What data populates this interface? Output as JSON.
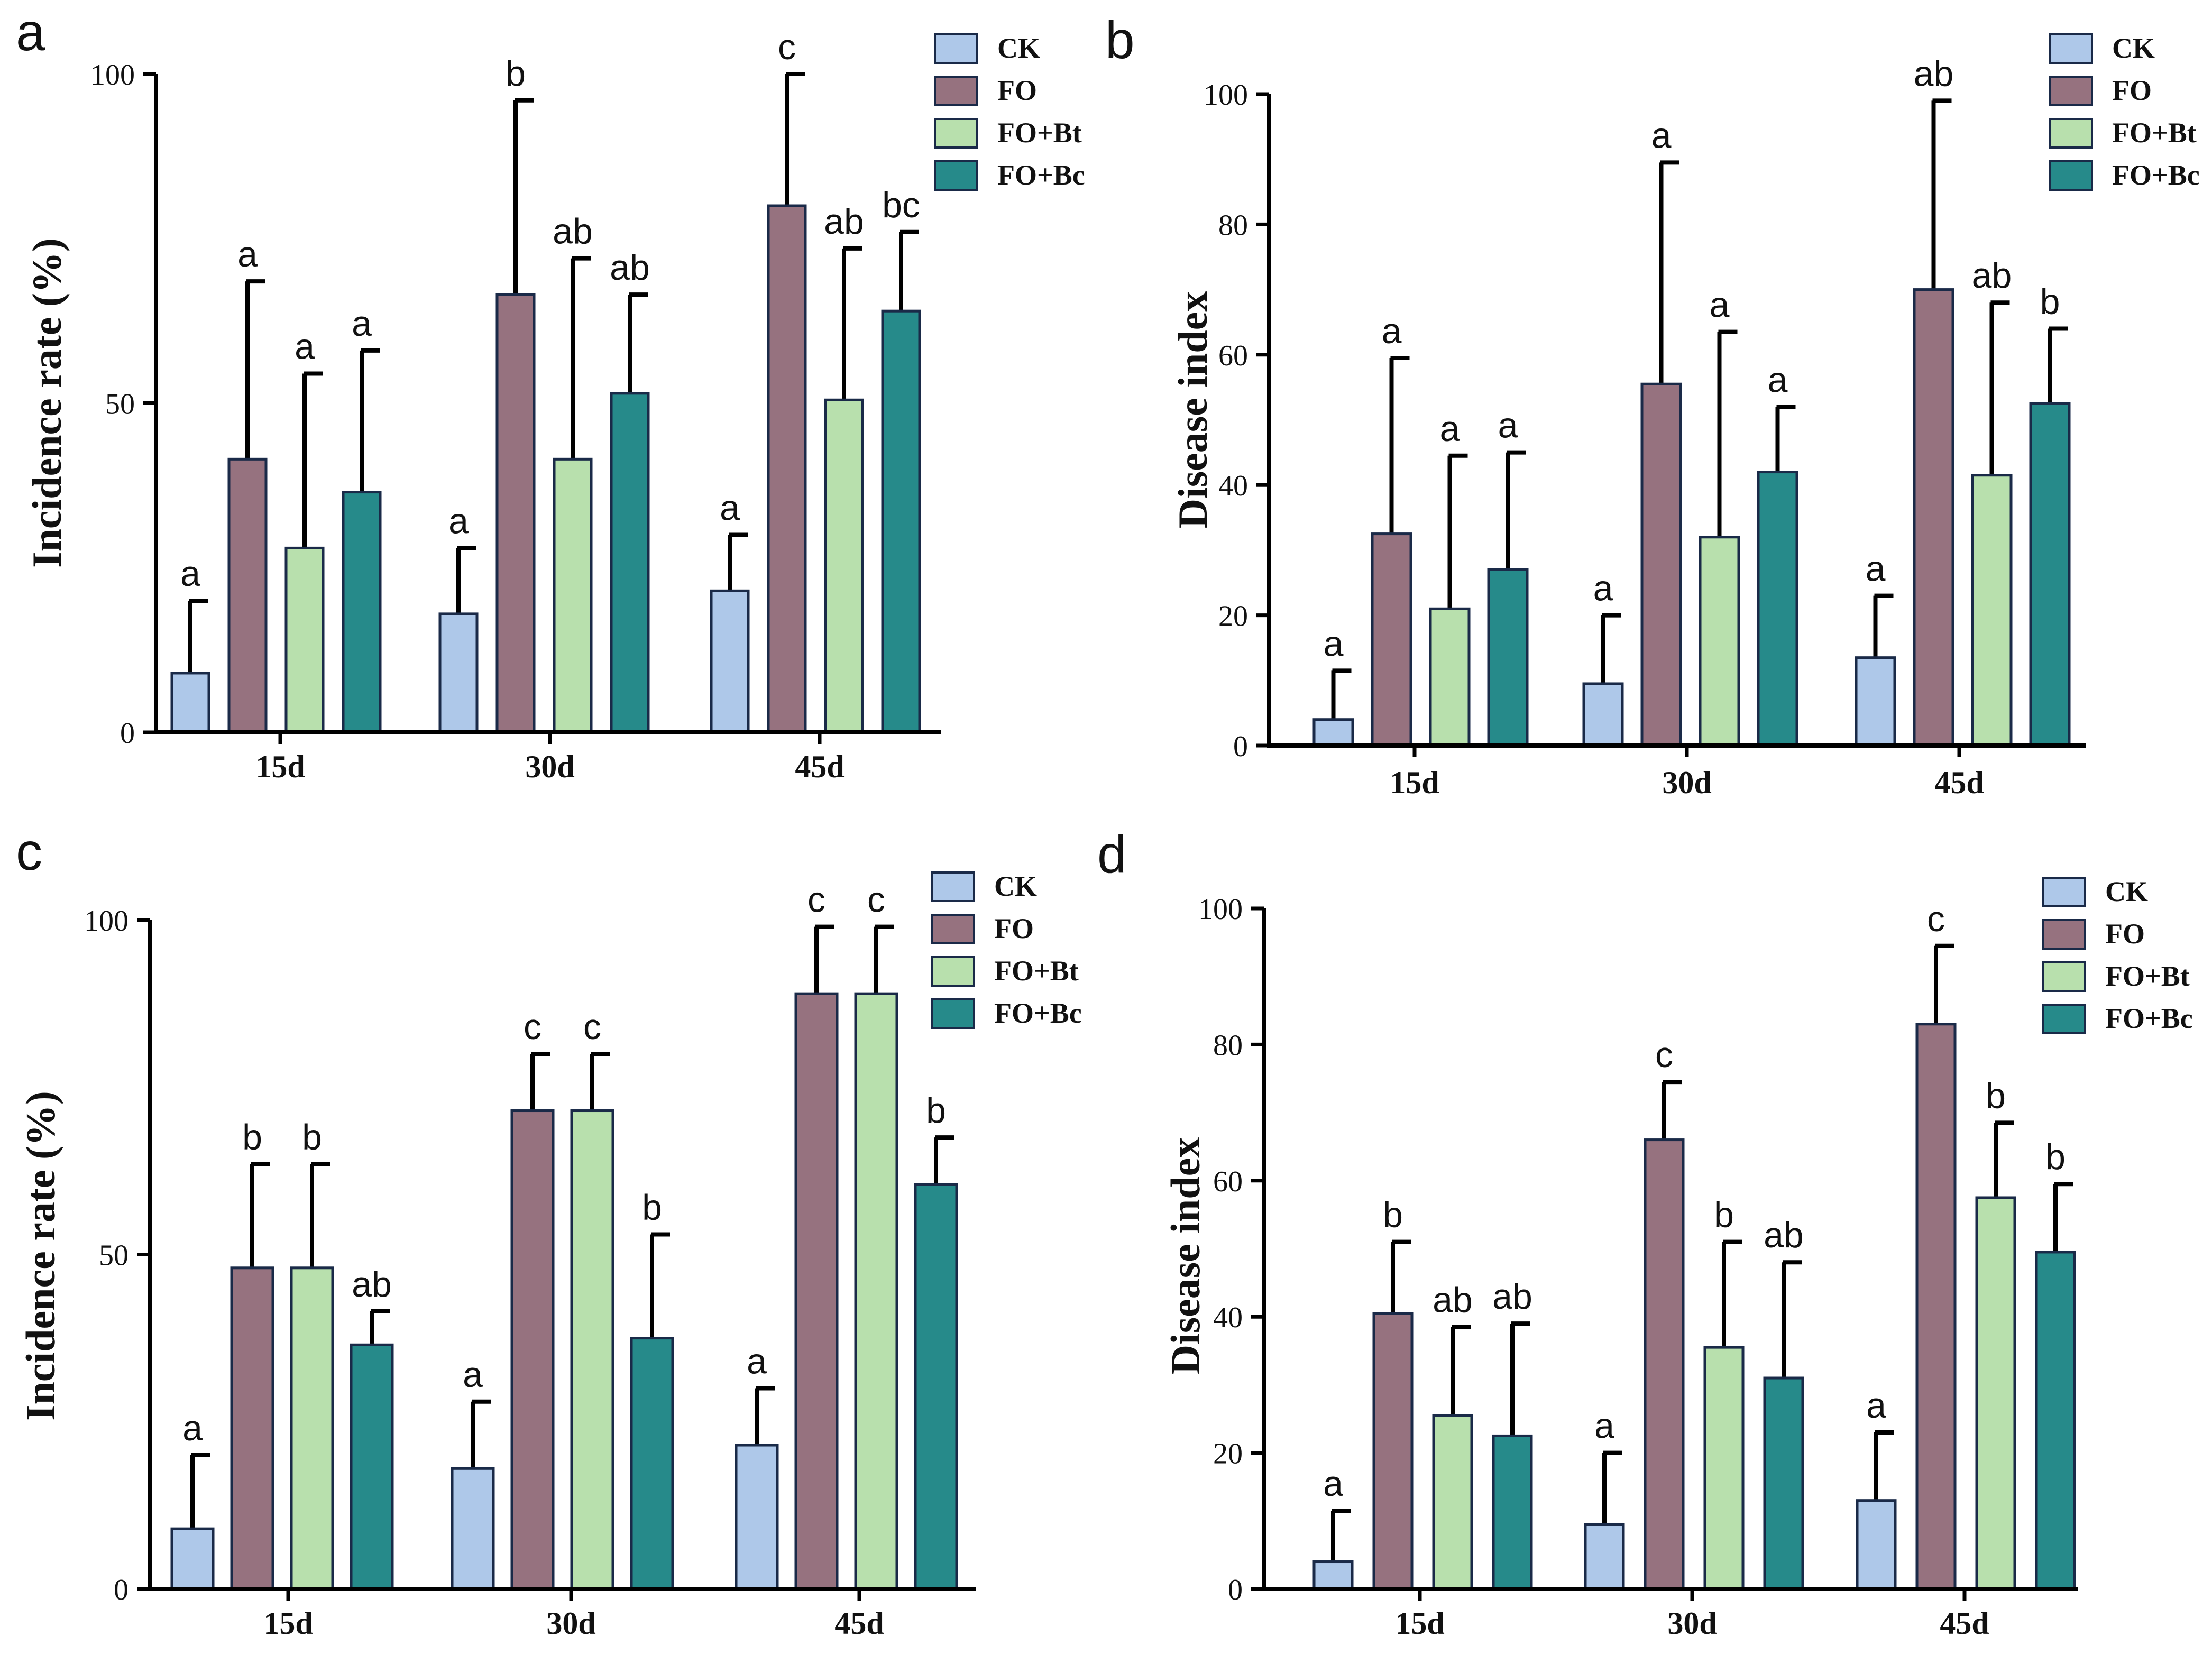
{
  "chart_data": [
    {
      "panel": "a",
      "type": "bar",
      "ylabel": "Incidence rate (%)",
      "xlabel": "",
      "categories": [
        "15d",
        "30d",
        "45d"
      ],
      "ylim": [
        0,
        100
      ],
      "yticks": [
        "0",
        "50",
        "100"
      ],
      "legend_position": "top-right",
      "series": [
        {
          "name": "CK",
          "color": "#aec8e9",
          "values": [
            9,
            18,
            21.5
          ],
          "errors": [
            11,
            10,
            8.5
          ],
          "letters": [
            "a",
            "a",
            "a"
          ]
        },
        {
          "name": "FO",
          "color": "#96727f",
          "values": [
            41.5,
            66.5,
            80
          ],
          "errors": [
            27,
            29.5,
            20
          ],
          "letters": [
            "a",
            "b",
            "c"
          ]
        },
        {
          "name": "FO+Bt",
          "color": "#b8e0ad",
          "values": [
            28,
            41.5,
            50.5
          ],
          "errors": [
            26.5,
            30.5,
            23
          ],
          "letters": [
            "a",
            "ab",
            "ab"
          ]
        },
        {
          "name": "FO+Bc",
          "color": "#268a8a",
          "values": [
            36.5,
            51.5,
            64
          ],
          "errors": [
            21.5,
            15,
            12
          ],
          "letters": [
            "a",
            "ab",
            "bc"
          ]
        }
      ]
    },
    {
      "panel": "b",
      "type": "bar",
      "ylabel": "Disease index",
      "xlabel": "",
      "categories": [
        "15d",
        "30d",
        "45d"
      ],
      "ylim": [
        0,
        100
      ],
      "yticks": [
        "0",
        "20",
        "40",
        "60",
        "80",
        "100"
      ],
      "legend_position": "top-right",
      "series": [
        {
          "name": "CK",
          "color": "#aec8e9",
          "values": [
            4,
            9.5,
            13.5
          ],
          "errors": [
            7.5,
            10.5,
            9.5
          ],
          "letters": [
            "a",
            "a",
            "a"
          ]
        },
        {
          "name": "FO",
          "color": "#96727f",
          "values": [
            32.5,
            55.5,
            70
          ],
          "errors": [
            27,
            34,
            29
          ],
          "letters": [
            "a",
            "a",
            "ab"
          ]
        },
        {
          "name": "FO+Bt",
          "color": "#b8e0ad",
          "values": [
            21,
            32,
            41.5
          ],
          "errors": [
            23.5,
            31.5,
            26.5
          ],
          "letters": [
            "a",
            "a",
            "ab"
          ]
        },
        {
          "name": "FO+Bc",
          "color": "#268a8a",
          "values": [
            27,
            42,
            52.5
          ],
          "errors": [
            18,
            10,
            11.5
          ],
          "letters": [
            "a",
            "a",
            "b"
          ]
        }
      ]
    },
    {
      "panel": "c",
      "type": "bar",
      "ylabel": "Incidence rate (%)",
      "xlabel": "",
      "categories": [
        "15d",
        "30d",
        "45d"
      ],
      "ylim": [
        0,
        100
      ],
      "yticks": [
        "0",
        "50",
        "100"
      ],
      "legend_position": "top-right",
      "series": [
        {
          "name": "CK",
          "color": "#aec8e9",
          "values": [
            9,
            18,
            21.5
          ],
          "errors": [
            11,
            10,
            8.5
          ],
          "letters": [
            "a",
            "a",
            "a"
          ]
        },
        {
          "name": "FO",
          "color": "#96727f",
          "values": [
            48,
            71.5,
            89
          ],
          "errors": [
            15.5,
            8.5,
            10
          ],
          "letters": [
            "b",
            "c",
            "c"
          ]
        },
        {
          "name": "FO+Bt",
          "color": "#b8e0ad",
          "values": [
            48,
            71.5,
            89
          ],
          "errors": [
            15.5,
            8.5,
            10
          ],
          "letters": [
            "b",
            "c",
            "c"
          ]
        },
        {
          "name": "FO+Bc",
          "color": "#268a8a",
          "values": [
            36.5,
            37.5,
            60.5
          ],
          "errors": [
            5,
            15.5,
            7
          ],
          "letters": [
            "ab",
            "b",
            "b"
          ]
        }
      ]
    },
    {
      "panel": "d",
      "type": "bar",
      "ylabel": "Disease index",
      "xlabel": "",
      "categories": [
        "15d",
        "30d",
        "45d"
      ],
      "ylim": [
        0,
        100
      ],
      "yticks": [
        "0",
        "20",
        "40",
        "60",
        "80",
        "100"
      ],
      "legend_position": "top-right",
      "series": [
        {
          "name": "CK",
          "color": "#aec8e9",
          "values": [
            4,
            9.5,
            13
          ],
          "errors": [
            7.5,
            10.5,
            10
          ],
          "letters": [
            "a",
            "a",
            "a"
          ]
        },
        {
          "name": "FO",
          "color": "#96727f",
          "values": [
            40.5,
            66,
            83
          ],
          "errors": [
            10.5,
            8.5,
            11.5
          ],
          "letters": [
            "b",
            "c",
            "c"
          ]
        },
        {
          "name": "FO+Bt",
          "color": "#b8e0ad",
          "values": [
            25.5,
            35.5,
            57.5
          ],
          "errors": [
            13,
            15.5,
            11
          ],
          "letters": [
            "ab",
            "b",
            "b"
          ]
        },
        {
          "name": "FO+Bc",
          "color": "#268a8a",
          "values": [
            22.5,
            31,
            49.5
          ],
          "errors": [
            16.5,
            17,
            10
          ],
          "letters": [
            "ab",
            "ab",
            "b"
          ]
        }
      ]
    }
  ]
}
